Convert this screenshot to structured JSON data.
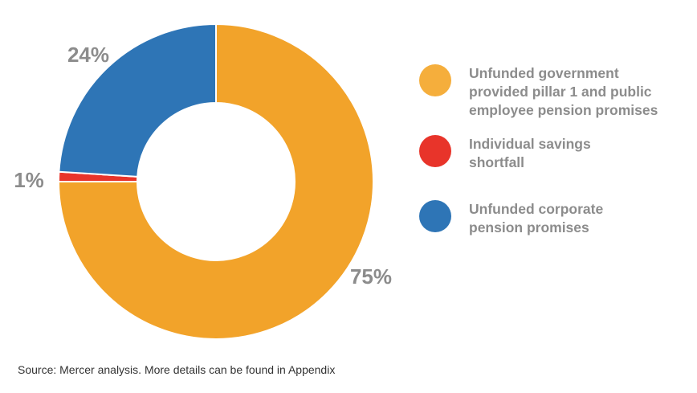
{
  "chart_data": {
    "type": "pie",
    "style": "donut",
    "title": "",
    "categories": [
      "Unfunded government provided pillar 1 and public employee pension promises",
      "Individual savings shortfall",
      "Unfunded corporate pension promises"
    ],
    "values": [
      75,
      1,
      24
    ],
    "value_labels": [
      "75%",
      "1%",
      "24%"
    ],
    "colors": [
      "#F2A32A",
      "#E8342A",
      "#2E75B6"
    ],
    "legend_position": "right"
  },
  "legend": {
    "items": [
      {
        "label": "Unfunded government\nprovided pillar 1 and public\nemployee pension promises",
        "color": "#F5AE3C"
      },
      {
        "label": "Individual savings\nshortfall",
        "color": "#E8342A"
      },
      {
        "label": "Unfunded corporate\npension promises",
        "color": "#2E75B6"
      }
    ]
  },
  "footer": {
    "source": "Source: Mercer analysis. More details can be found in Appendix"
  }
}
